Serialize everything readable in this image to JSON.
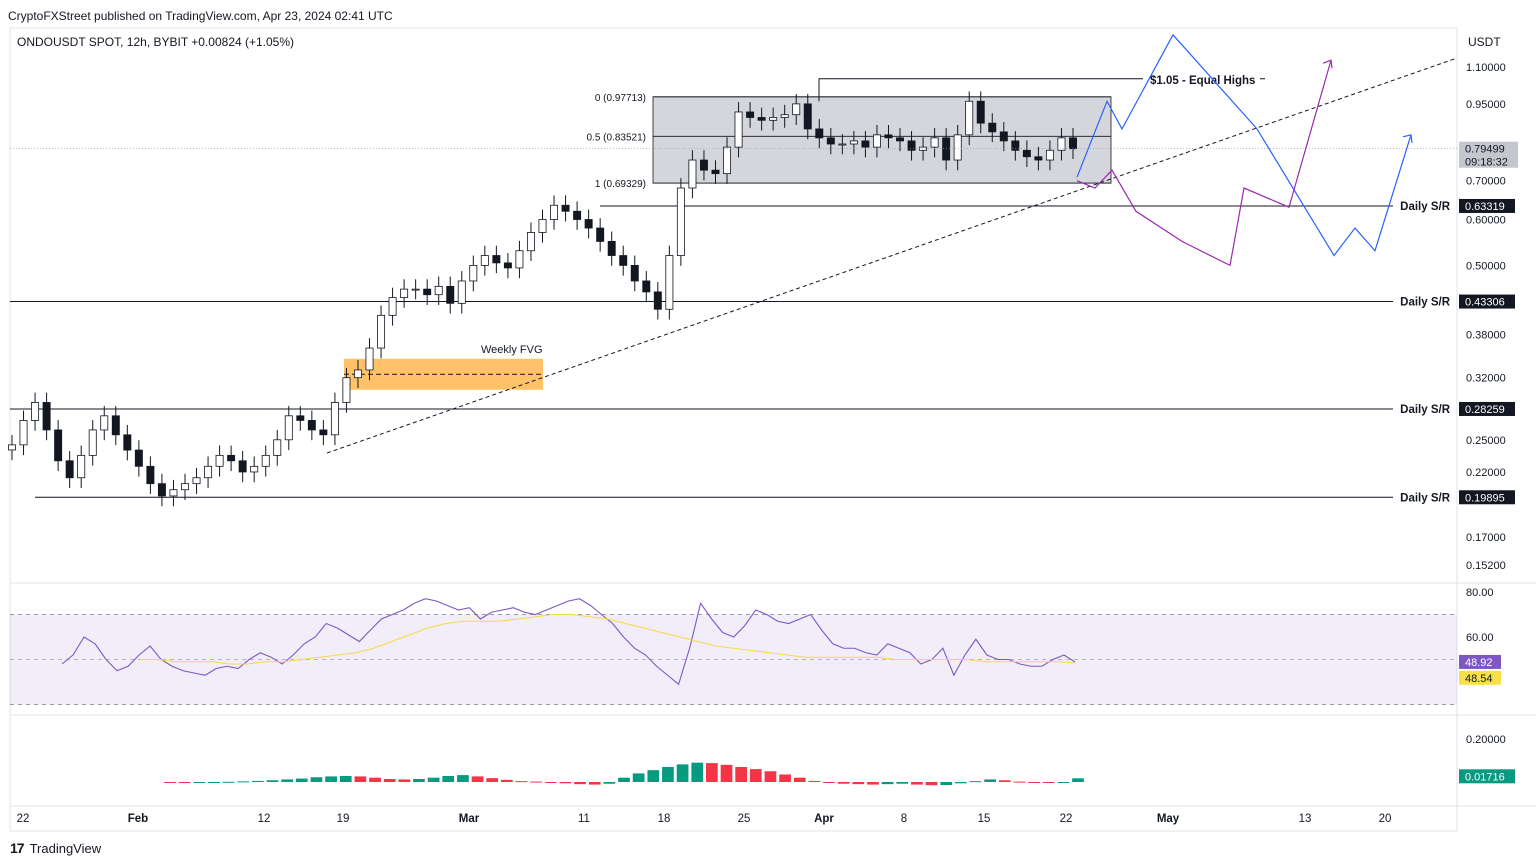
{
  "header": {
    "published": "CryptoFXStreet published on TradingView.com, Apr 23, 2024 02:41 UTC",
    "symbol_line": "ONDOUSDT SPOT, 12h, BYBIT  +0.00824 (+1.05%)"
  },
  "brand": {
    "logo": "17",
    "name": "TradingView"
  },
  "colors": {
    "up": "#089981",
    "down": "#f23645",
    "rsi": "#7e57c2",
    "rsi_ma": "#f7d84a",
    "proj_blue": "#2962ff",
    "proj_purple": "#9c27b0",
    "fvg": "#ffb74d",
    "range": "#b2b5be"
  },
  "chart_data": {
    "type": "candlestick",
    "currency_label": "USDT",
    "price_axis": {
      "scale": "log",
      "ticks": [
        1.1,
        0.95,
        0.7,
        0.6,
        0.5,
        0.38,
        0.32,
        0.25,
        0.22,
        0.17,
        0.152
      ],
      "tick_labels": [
        "1.10000",
        "0.95000",
        "0.70000",
        "0.60000",
        "0.50000",
        "0.38000",
        "0.32000",
        "0.25000",
        "0.22000",
        "0.17000",
        "0.15200"
      ]
    },
    "current_price": {
      "value": "0.79499",
      "countdown": "09:18:32"
    },
    "x_axis": {
      "labels": [
        "22",
        "Feb",
        "12",
        "19",
        "Mar",
        "11",
        "18",
        "25",
        "Apr",
        "8",
        "15",
        "22",
        "May",
        "13",
        "20"
      ],
      "bold": [
        false,
        true,
        false,
        false,
        true,
        false,
        false,
        false,
        true,
        false,
        false,
        false,
        true,
        false,
        false
      ]
    },
    "levels": [
      {
        "label": "Daily S/R",
        "value": "0.63319"
      },
      {
        "label": "Daily S/R",
        "value": "0.43306"
      },
      {
        "label": "Daily S/R",
        "value": "0.28259"
      },
      {
        "label": "Daily S/R",
        "value": "0.19895"
      }
    ],
    "fib": [
      {
        "label": "0 (0.97713)",
        "value": 0.97713
      },
      {
        "label": "0.5 (0.83521)",
        "value": 0.83521
      },
      {
        "label": "1 (0.69329)",
        "value": 0.69329
      }
    ],
    "annotations": {
      "equal_highs": "$1.05 - Equal Highs",
      "equal_highs_value": 1.05,
      "fvg_label": "Weekly FVG",
      "fvg_low": 0.305,
      "fvg_high": 0.345
    },
    "series": {
      "close": [
        0.245,
        0.27,
        0.29,
        0.26,
        0.23,
        0.215,
        0.235,
        0.26,
        0.275,
        0.255,
        0.24,
        0.225,
        0.21,
        0.2,
        0.205,
        0.21,
        0.215,
        0.225,
        0.235,
        0.23,
        0.22,
        0.225,
        0.235,
        0.25,
        0.275,
        0.27,
        0.26,
        0.255,
        0.29,
        0.32,
        0.33,
        0.36,
        0.41,
        0.44,
        0.455,
        0.455,
        0.445,
        0.46,
        0.43,
        0.47,
        0.5,
        0.52,
        0.505,
        0.495,
        0.53,
        0.57,
        0.6,
        0.635,
        0.62,
        0.6,
        0.58,
        0.55,
        0.52,
        0.5,
        0.47,
        0.45,
        0.42,
        0.52,
        0.68,
        0.76,
        0.73,
        0.72,
        0.8,
        0.92,
        0.9,
        0.89,
        0.9,
        0.91,
        0.95,
        0.86,
        0.83,
        0.81,
        0.81,
        0.82,
        0.8,
        0.84,
        0.83,
        0.82,
        0.79,
        0.8,
        0.83,
        0.76,
        0.84,
        0.96,
        0.88,
        0.85,
        0.82,
        0.79,
        0.77,
        0.76,
        0.79,
        0.83,
        0.795
      ],
      "rsi": [
        48,
        52,
        60,
        57,
        50,
        45,
        47,
        52,
        56,
        50,
        47,
        45,
        44,
        43,
        46,
        47,
        46,
        50,
        53,
        51,
        48,
        52,
        57,
        60,
        66,
        64,
        61,
        58,
        63,
        68,
        70,
        72,
        75,
        77,
        76,
        74,
        72,
        73,
        68,
        71,
        72,
        73,
        71,
        70,
        72,
        74,
        76,
        77,
        74,
        70,
        66,
        60,
        55,
        52,
        47,
        43,
        39,
        55,
        75,
        68,
        62,
        60,
        65,
        72,
        70,
        67,
        66,
        68,
        70,
        63,
        57,
        55,
        55,
        53,
        52,
        57,
        55,
        53,
        48,
        50,
        55,
        43,
        52,
        59,
        52,
        50,
        50,
        48,
        47,
        47,
        50,
        52,
        48.92
      ],
      "rsi_ma": [
        50,
        50,
        49,
        49,
        49,
        48,
        48,
        49,
        49,
        50,
        51,
        52,
        53,
        55,
        58,
        61,
        64,
        66,
        67,
        67,
        67,
        68,
        69,
        70,
        70,
        69,
        68,
        66,
        64,
        62,
        60,
        58,
        56,
        55,
        54,
        53,
        52,
        51,
        51,
        51,
        51,
        51,
        50,
        50,
        50,
        50,
        50,
        49,
        49,
        49,
        49,
        49,
        48.54
      ],
      "hist": [
        -0.004,
        -0.005,
        -0.003,
        -0.001,
        0.001,
        0.003,
        0.005,
        0.008,
        0.012,
        0.016,
        0.022,
        0.026,
        0.028,
        0.026,
        0.02,
        0.014,
        0.012,
        0.014,
        0.02,
        0.028,
        0.032,
        0.026,
        0.018,
        0.01,
        0.004,
        0.002,
        -0.002,
        -0.006,
        -0.01,
        -0.012,
        -0.008,
        0.02,
        0.04,
        0.055,
        0.07,
        0.082,
        0.09,
        0.088,
        0.08,
        0.07,
        0.06,
        0.05,
        0.035,
        0.02,
        0.005,
        -0.004,
        -0.008,
        -0.01,
        -0.012,
        -0.01,
        -0.008,
        -0.012,
        -0.015,
        -0.014,
        -0.006,
        0.004,
        0.012,
        0.008,
        0.002,
        -0.002,
        -0.003,
        0.0,
        0.01716
      ]
    },
    "rsi_axis": {
      "ticks": [
        80.0,
        60.0
      ],
      "labels": [
        "80.00",
        "60.00"
      ],
      "band": [
        30,
        70
      ],
      "value": "48.92",
      "ma_value": "48.54"
    },
    "macd_axis": {
      "ticks": [
        0.2
      ],
      "labels": [
        "0.20000"
      ],
      "value": "0.01716"
    },
    "projections": {
      "blue": [
        0.71,
        0.96,
        0.86,
        1.25,
        0.86,
        0.52,
        0.58,
        0.53,
        0.84
      ],
      "purple": [
        0.7,
        0.68,
        0.73,
        0.62,
        0.55,
        0.5,
        0.68,
        0.63,
        1.13
      ]
    }
  }
}
